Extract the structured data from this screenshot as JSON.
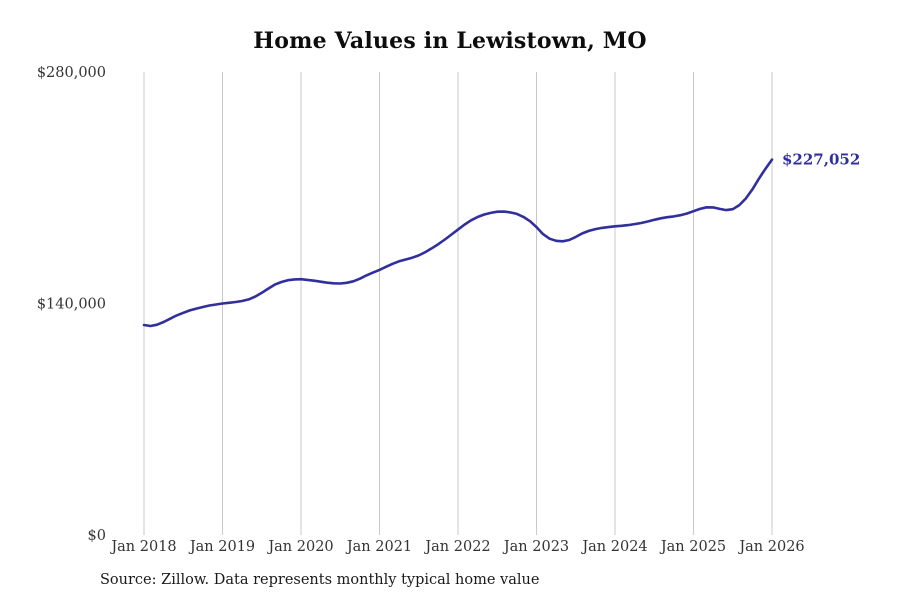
{
  "chart_data": {
    "type": "line",
    "title": "Home Values in Lewistown, MO",
    "series_name": "Monthly typical home value",
    "x_start": "Jan 2018",
    "x_interval": "monthly",
    "x_tick_labels": [
      "Jan 2018",
      "Jan 2019",
      "Jan 2020",
      "Jan 2021",
      "Jan 2022",
      "Jan 2023",
      "Jan 2024",
      "Jan 2025",
      "Jan 2026"
    ],
    "values": [
      127000,
      126400,
      127200,
      128800,
      130800,
      132800,
      134400,
      135800,
      136900,
      137900,
      138800,
      139400,
      140000,
      140400,
      140900,
      141500,
      142500,
      144200,
      146500,
      149000,
      151400,
      153000,
      154100,
      154600,
      154700,
      154300,
      153800,
      153200,
      152600,
      152200,
      152100,
      152500,
      153400,
      155000,
      157000,
      158700,
      160300,
      162200,
      164000,
      165500,
      166600,
      167700,
      169100,
      171100,
      173400,
      175900,
      178700,
      181700,
      184700,
      187700,
      190300,
      192300,
      193800,
      194800,
      195500,
      195600,
      195100,
      194200,
      192400,
      189800,
      186200,
      182000,
      179200,
      177900,
      177600,
      178400,
      180300,
      182400,
      183900,
      185000,
      185700,
      186200,
      186700,
      187000,
      187400,
      188000,
      188700,
      189600,
      190600,
      191500,
      192200,
      192700,
      193400,
      194400,
      195800,
      197200,
      198200,
      198100,
      197200,
      196500,
      197000,
      199500,
      203500,
      209000,
      215500,
      221500,
      227052
    ],
    "y_ticks": [
      {
        "label": "$0",
        "value": 0
      },
      {
        "label": "$140,000",
        "value": 140000
      },
      {
        "label": "$280,000",
        "value": 280000
      }
    ],
    "ylim": [
      0,
      280000
    ],
    "xlabel": "",
    "ylabel": "",
    "end_label": "$227,052",
    "end_value": 227052,
    "line_color": "#312f9e",
    "grid_color": "#c9c9c9",
    "grid": "vertical-only",
    "legend": "none"
  },
  "footer": {
    "source": "Source: Zillow. Data represents monthly typical home value"
  }
}
